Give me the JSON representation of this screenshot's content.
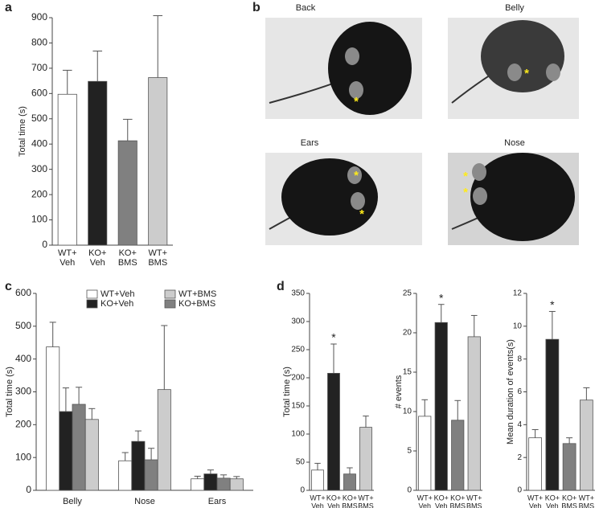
{
  "figure_b": {
    "panel": "b",
    "photos": [
      {
        "label": "Back",
        "markers": [
          "*"
        ]
      },
      {
        "label": "Belly",
        "markers": [
          "*"
        ]
      },
      {
        "label": "Ears",
        "markers": [
          "*",
          "*"
        ]
      },
      {
        "label": "Nose",
        "markers": [
          "*",
          "*"
        ]
      }
    ]
  },
  "chart_data": [
    {
      "panel": "a",
      "type": "bar",
      "ylabel": "Total time (s)",
      "categories": [
        [
          "WT+",
          "Veh"
        ],
        [
          "KO+",
          "Veh"
        ],
        [
          "KO+",
          "BMS"
        ],
        [
          "WT+",
          "BMS"
        ]
      ],
      "values": [
        597,
        648,
        413,
        663
      ],
      "errors": [
        95,
        120,
        85,
        245
      ],
      "colors": [
        "#ffffff",
        "#222222",
        "#808080",
        "#cccccc"
      ],
      "ylim": [
        0,
        900
      ],
      "yticks": [
        0,
        100,
        200,
        300,
        400,
        500,
        600,
        700,
        800,
        900
      ]
    },
    {
      "panel": "c",
      "type": "grouped-bar",
      "ylabel": "Total time (s)",
      "categories": [
        "Belly",
        "Nose",
        "Ears"
      ],
      "series": [
        {
          "name": "WT+Veh",
          "color": "#ffffff",
          "values": [
            437,
            90,
            35
          ],
          "errors": [
            75,
            25,
            8
          ]
        },
        {
          "name": "KO+Veh",
          "color": "#222222",
          "values": [
            240,
            149,
            50
          ],
          "errors": [
            72,
            32,
            12
          ]
        },
        {
          "name": "KO+BMS",
          "color": "#808080",
          "values": [
            262,
            93,
            37
          ],
          "errors": [
            52,
            35,
            10
          ]
        },
        {
          "name": "WT+BMS",
          "color": "#cccccc",
          "values": [
            216,
            307,
            35
          ],
          "errors": [
            33,
            195,
            7
          ]
        }
      ],
      "ylim": [
        0,
        600
      ],
      "yticks": [
        0,
        100,
        200,
        300,
        400,
        500,
        600
      ]
    },
    {
      "panel": "d",
      "type": "bar",
      "ylabel": "Total time (s)",
      "categories": [
        [
          "WT+",
          "Veh"
        ],
        [
          "KO+",
          "Veh"
        ],
        [
          "KO+",
          "BMS"
        ],
        [
          "WT+",
          "BMS"
        ]
      ],
      "values": [
        36,
        208,
        29,
        112
      ],
      "errors": [
        12,
        52,
        11,
        20
      ],
      "significance": [
        null,
        "*",
        null,
        null
      ],
      "colors": [
        "#ffffff",
        "#222222",
        "#808080",
        "#cccccc"
      ],
      "ylim": [
        0,
        350
      ],
      "yticks": [
        0,
        50,
        100,
        150,
        200,
        250,
        300,
        350
      ]
    },
    {
      "type": "bar",
      "ylabel": "# events",
      "categories": [
        [
          "WT+",
          "Veh"
        ],
        [
          "KO+",
          "Veh"
        ],
        [
          "KO+",
          "BMS"
        ],
        [
          "WT+",
          "BMS"
        ]
      ],
      "values": [
        9.4,
        21.3,
        8.9,
        19.5
      ],
      "errors": [
        2.1,
        2.3,
        2.5,
        2.7
      ],
      "significance": [
        null,
        "*",
        null,
        null
      ],
      "colors": [
        "#ffffff",
        "#222222",
        "#808080",
        "#cccccc"
      ],
      "ylim": [
        0,
        25
      ],
      "yticks": [
        0,
        5,
        10,
        15,
        20,
        25
      ]
    },
    {
      "type": "bar",
      "ylabel": "Mean duration of events(s)",
      "categories": [
        [
          "WT+",
          "Veh"
        ],
        [
          "KO+",
          "Veh"
        ],
        [
          "KO+",
          "BMS"
        ],
        [
          "WT+",
          "BMS"
        ]
      ],
      "values": [
        3.2,
        9.2,
        2.85,
        5.5
      ],
      "errors": [
        0.5,
        1.7,
        0.35,
        0.75
      ],
      "significance": [
        null,
        "*",
        null,
        null
      ],
      "colors": [
        "#ffffff",
        "#222222",
        "#808080",
        "#cccccc"
      ],
      "ylim": [
        0,
        12
      ],
      "yticks": [
        0,
        2,
        4,
        6,
        8,
        10,
        12
      ]
    }
  ]
}
